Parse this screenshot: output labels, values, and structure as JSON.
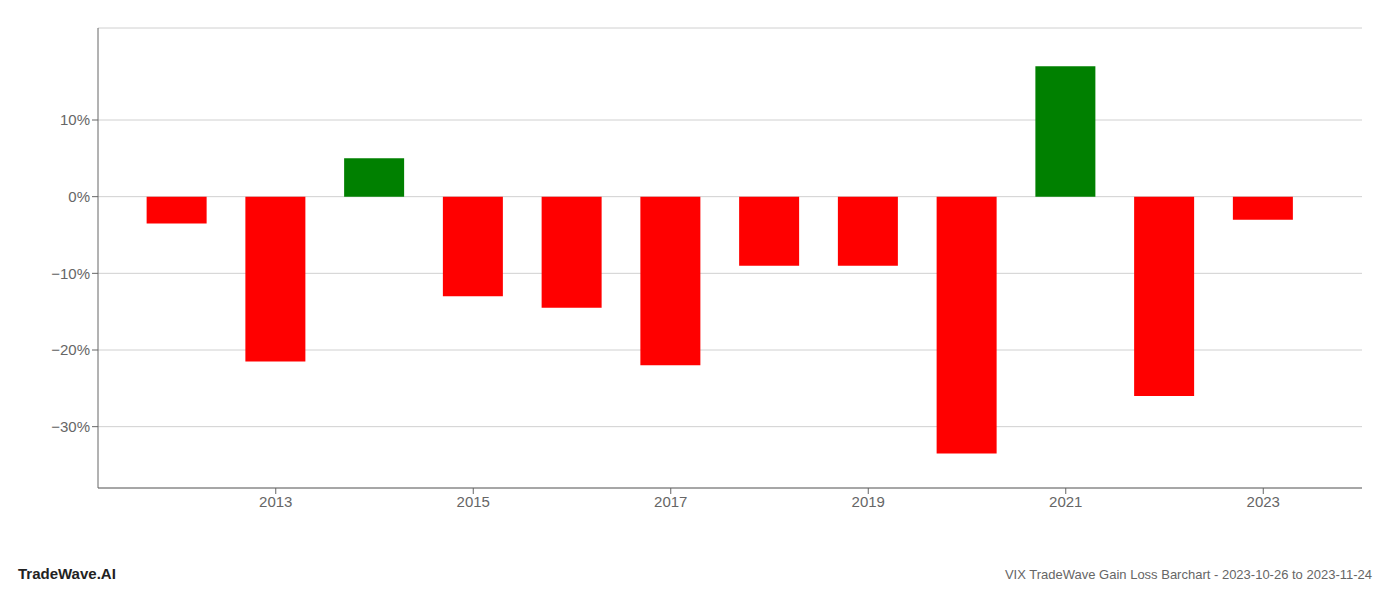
{
  "chart_data": {
    "type": "bar",
    "title": "VIX TradeWave Gain Loss Barchart - 2023-10-26 to 2023-11-24",
    "annotations": [
      "TradeWave.AI"
    ],
    "x": [
      2012,
      2013,
      2014,
      2015,
      2016,
      2017,
      2018,
      2019,
      2020,
      2021,
      2022,
      2023
    ],
    "values": [
      -3.5,
      -21.5,
      5.0,
      -13.0,
      -14.5,
      -22.0,
      -9.0,
      -9.0,
      -33.5,
      17.0,
      -26.0,
      -3.0
    ],
    "colors": [
      "#ff0000",
      "#ff0000",
      "#008000",
      "#ff0000",
      "#ff0000",
      "#ff0000",
      "#ff0000",
      "#ff0000",
      "#ff0000",
      "#008000",
      "#ff0000",
      "#ff0000"
    ],
    "xlim": [
      2011.2,
      2024.0
    ],
    "xticks": [
      2013,
      2015,
      2017,
      2019,
      2021,
      2023
    ],
    "ylim": [
      -38,
      22
    ],
    "yticks": [
      {
        "value": 10,
        "label": "10%"
      },
      {
        "value": 0,
        "label": "0%"
      },
      {
        "value": -10,
        "label": "−10%"
      },
      {
        "value": -20,
        "label": "−20%"
      },
      {
        "value": -30,
        "label": "−30%"
      }
    ],
    "grid": true
  }
}
